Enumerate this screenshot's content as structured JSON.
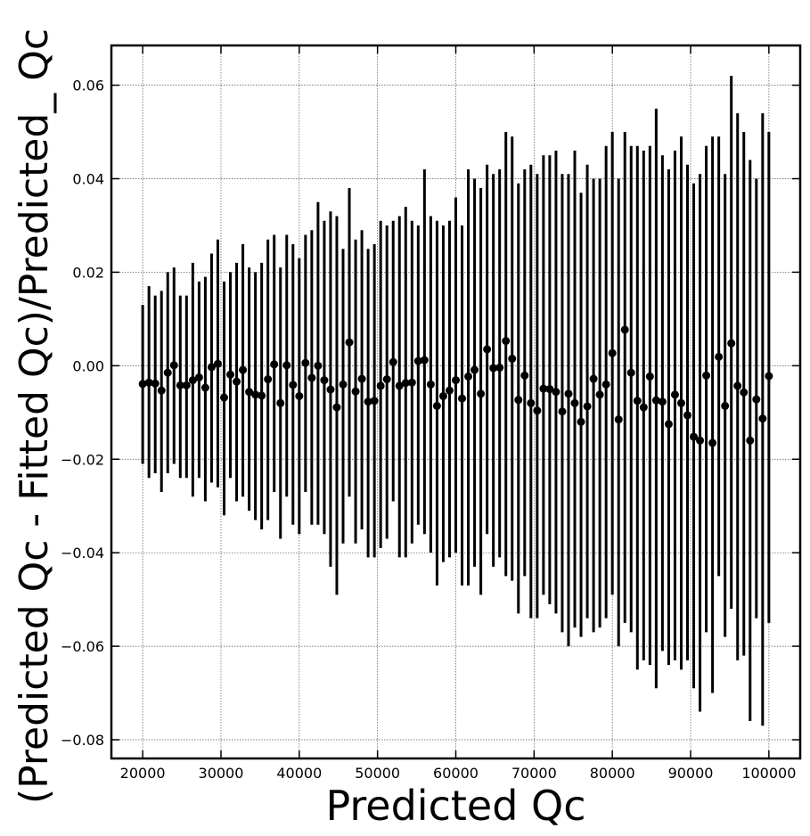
{
  "chart_data": {
    "type": "scatter",
    "error_bars": true,
    "title": "",
    "xlabel": "Predicted Qc",
    "ylabel": "(Predicted Qc - Fitted Qc)/Predicted_ Qc",
    "xlim": [
      16000,
      104000
    ],
    "ylim": [
      -0.084,
      0.0685
    ],
    "grid": true,
    "marker_color": "#000000",
    "x_ticks": [
      20000,
      30000,
      40000,
      50000,
      60000,
      70000,
      80000,
      90000,
      100000
    ],
    "x_tick_labels": [
      "20000",
      "30000",
      "40000",
      "50000",
      "60000",
      "70000",
      "80000",
      "90000",
      "100000"
    ],
    "y_ticks": [
      -0.08,
      -0.06,
      -0.04,
      -0.02,
      0.0,
      0.02,
      0.04,
      0.06
    ],
    "y_tick_labels": [
      "−0.08",
      "−0.06",
      "−0.04",
      "−0.02",
      "0.00",
      "0.02",
      "0.04",
      "0.06"
    ],
    "x_start": 20000,
    "x_step": 800,
    "y": [
      -0.0039,
      -0.0036,
      -0.0038,
      -0.0053,
      -0.0015,
      0.0001,
      -0.0042,
      -0.0042,
      -0.0031,
      -0.0025,
      -0.0047,
      -0.0003,
      0.0004,
      -0.0068,
      -0.0019,
      -0.0034,
      -0.0009,
      -0.0056,
      -0.0062,
      -0.0064,
      -0.0029,
      0.0003,
      -0.008,
      0.0001,
      -0.0041,
      -0.0065,
      0.0006,
      -0.0026,
      0.0,
      -0.0031,
      -0.0051,
      -0.0089,
      -0.004,
      0.005,
      -0.0055,
      -0.0028,
      -0.0077,
      -0.0075,
      -0.0043,
      -0.0029,
      0.0008,
      -0.0043,
      -0.0037,
      -0.0036,
      0.001,
      0.0012,
      -0.004,
      -0.0086,
      -0.0065,
      -0.0053,
      -0.0031,
      -0.007,
      -0.0023,
      -0.0009,
      -0.006,
      0.0035,
      -0.0005,
      -0.0004,
      0.0053,
      0.0015,
      -0.0073,
      -0.0021,
      -0.008,
      -0.0096,
      -0.0049,
      -0.005,
      -0.0056,
      -0.0098,
      -0.006,
      -0.008,
      -0.012,
      -0.0087,
      -0.0028,
      -0.0062,
      -0.004,
      0.0027,
      -0.0115,
      0.0077,
      -0.0015,
      -0.0075,
      -0.0089,
      -0.0023,
      -0.0074,
      -0.0077,
      -0.0125,
      -0.0062,
      -0.008,
      -0.0106,
      -0.0152,
      -0.016,
      -0.0021,
      -0.0165,
      0.0019,
      -0.0086,
      0.0048,
      -0.0043,
      -0.0057,
      -0.016,
      -0.0072,
      -0.0113,
      -0.0022
    ],
    "y_upper": [
      0.013,
      0.017,
      0.015,
      0.016,
      0.02,
      0.021,
      0.015,
      0.015,
      0.022,
      0.018,
      0.019,
      0.024,
      0.027,
      0.018,
      0.02,
      0.022,
      0.026,
      0.021,
      0.02,
      0.022,
      0.027,
      0.028,
      0.021,
      0.028,
      0.026,
      0.023,
      0.028,
      0.029,
      0.035,
      0.031,
      0.033,
      0.032,
      0.025,
      0.038,
      0.027,
      0.029,
      0.025,
      0.026,
      0.031,
      0.03,
      0.031,
      0.032,
      0.034,
      0.031,
      0.03,
      0.042,
      0.032,
      0.031,
      0.03,
      0.031,
      0.036,
      0.03,
      0.042,
      0.04,
      0.038,
      0.043,
      0.041,
      0.042,
      0.05,
      0.049,
      0.039,
      0.042,
      0.043,
      0.041,
      0.045,
      0.045,
      0.046,
      0.041,
      0.041,
      0.046,
      0.037,
      0.043,
      0.04,
      0.04,
      0.047,
      0.05,
      0.04,
      0.05,
      0.047,
      0.047,
      0.046,
      0.047,
      0.055,
      0.045,
      0.042,
      0.046,
      0.049,
      0.043,
      0.039,
      0.041,
      0.047,
      0.049,
      0.049,
      0.041,
      0.062,
      0.054,
      0.05,
      0.044,
      0.04,
      0.054,
      0.05
    ],
    "y_lower": [
      -0.021,
      -0.024,
      -0.023,
      -0.027,
      -0.023,
      -0.021,
      -0.024,
      -0.024,
      -0.028,
      -0.024,
      -0.029,
      -0.025,
      -0.026,
      -0.032,
      -0.024,
      -0.029,
      -0.028,
      -0.031,
      -0.033,
      -0.035,
      -0.033,
      -0.027,
      -0.037,
      -0.028,
      -0.034,
      -0.036,
      -0.027,
      -0.034,
      -0.034,
      -0.036,
      -0.043,
      -0.049,
      -0.038,
      -0.028,
      -0.038,
      -0.035,
      -0.041,
      -0.041,
      -0.039,
      -0.037,
      -0.029,
      -0.041,
      -0.041,
      -0.038,
      -0.034,
      -0.036,
      -0.04,
      -0.047,
      -0.042,
      -0.041,
      -0.04,
      -0.047,
      -0.047,
      -0.043,
      -0.049,
      -0.036,
      -0.043,
      -0.041,
      -0.045,
      -0.046,
      -0.053,
      -0.045,
      -0.054,
      -0.054,
      -0.049,
      -0.051,
      -0.053,
      -0.057,
      -0.06,
      -0.056,
      -0.058,
      -0.054,
      -0.057,
      -0.056,
      -0.054,
      -0.049,
      -0.06,
      -0.055,
      -0.057,
      -0.065,
      -0.063,
      -0.064,
      -0.069,
      -0.061,
      -0.064,
      -0.063,
      -0.065,
      -0.063,
      -0.069,
      -0.074,
      -0.057,
      -0.07,
      -0.045,
      -0.058,
      -0.052,
      -0.063,
      -0.062,
      -0.076,
      -0.054,
      -0.077,
      -0.055
    ]
  }
}
